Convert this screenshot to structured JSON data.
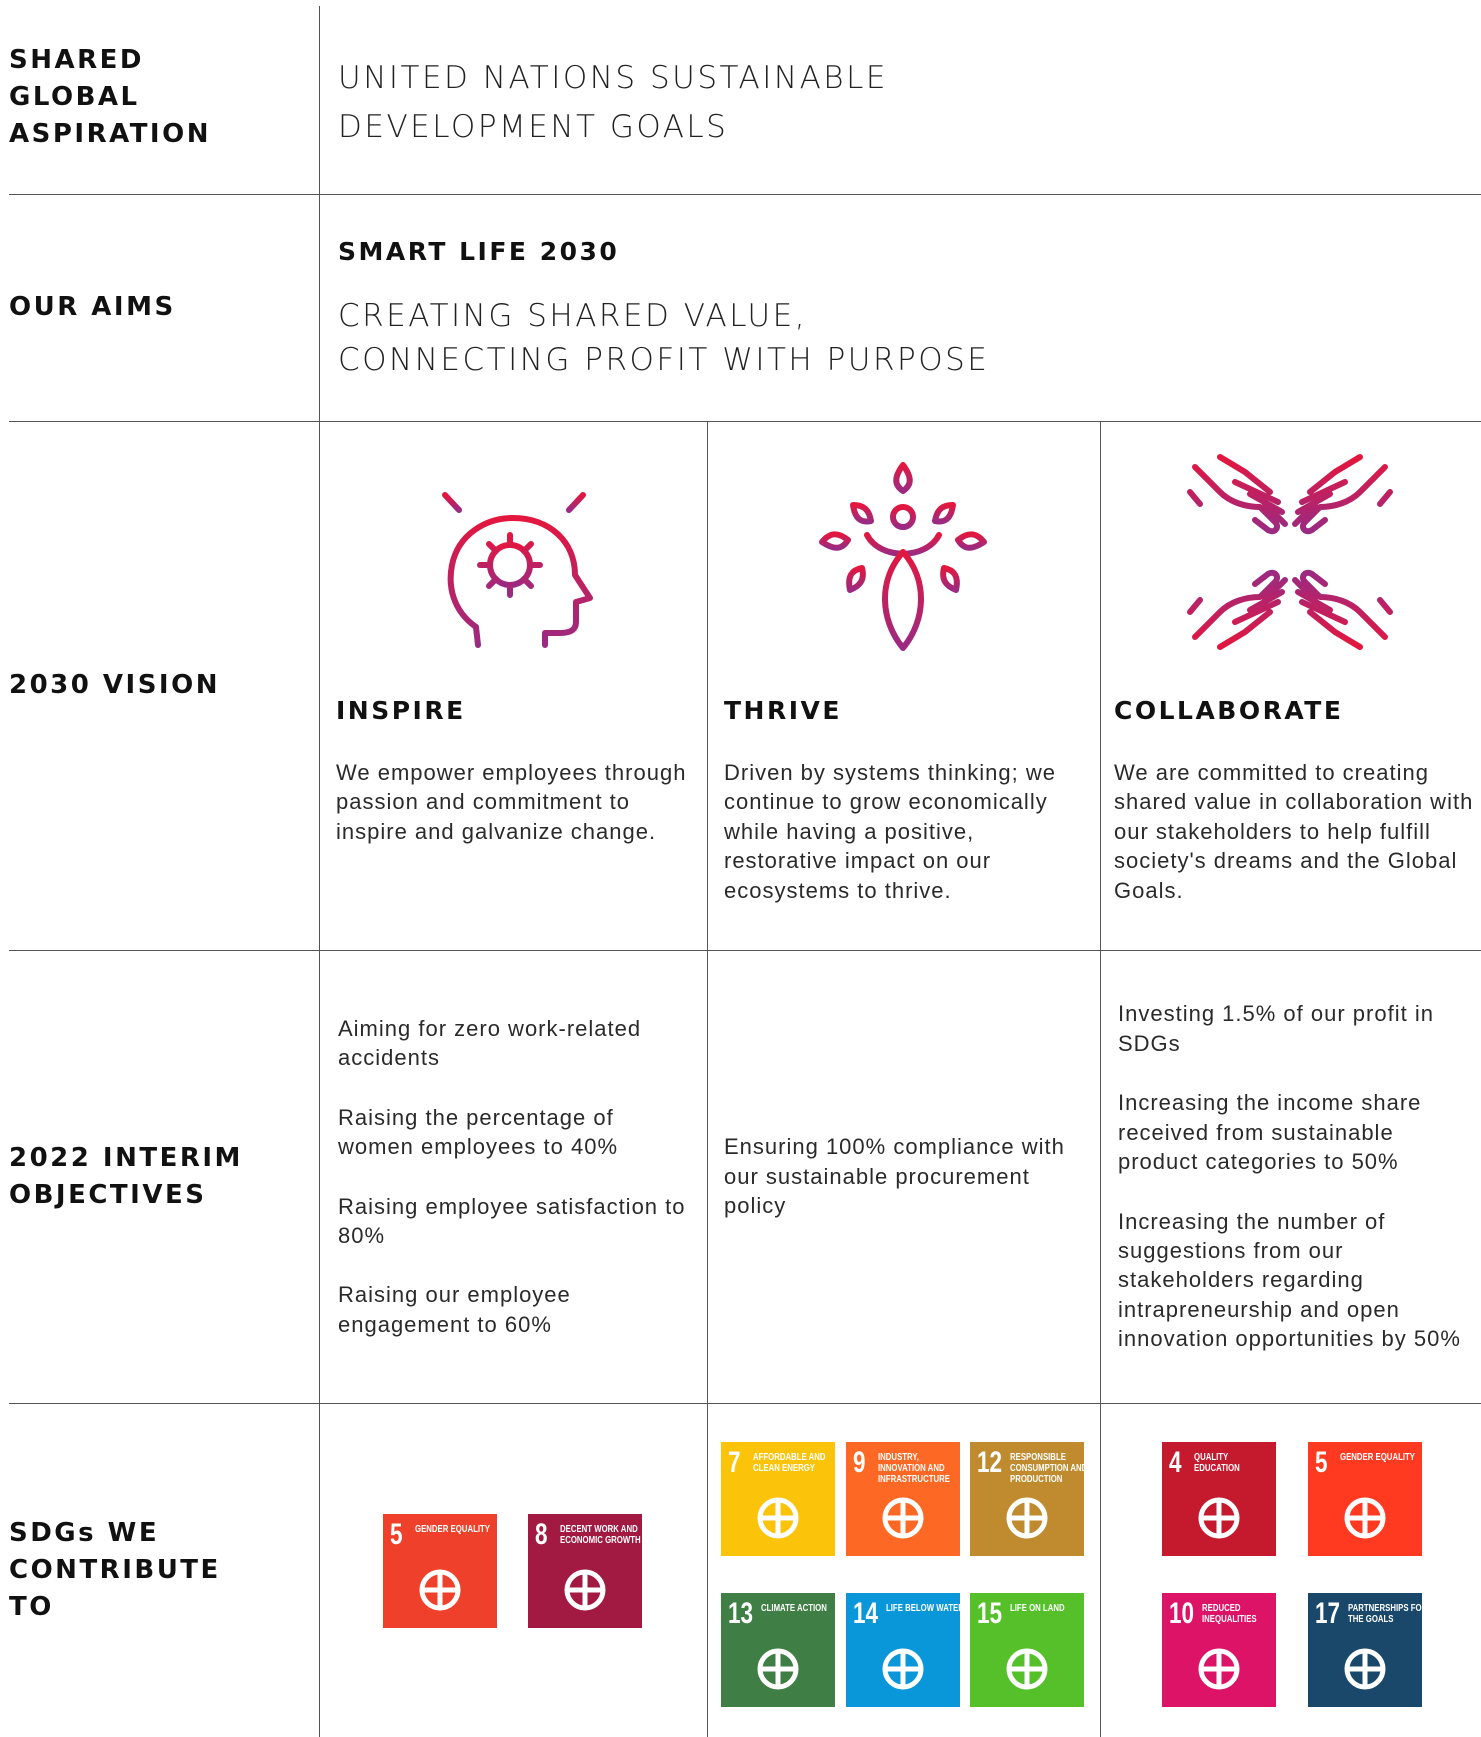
{
  "aspiration": {
    "label": [
      "SHARED",
      "GLOBAL",
      "ASPIRATION"
    ],
    "text": [
      "UNITED NATIONS SUSTAINABLE",
      "DEVELOPMENT GOALS"
    ]
  },
  "aims": {
    "label": [
      "OUR AIMS"
    ],
    "heading": "SMART LIFE 2030",
    "text": [
      "CREATING SHARED VALUE,",
      "CONNECTING PROFIT WITH PURPOSE"
    ]
  },
  "vision": {
    "label": [
      "2030 VISION"
    ],
    "columns": [
      {
        "title": "INSPIRE",
        "text": "We empower employees through passion and commitment to inspire and galvanize change."
      },
      {
        "title": "THRIVE",
        "text": "Driven by systems thinking; we continue to  grow economically while having a positive, restorative impact on our ecosystems to thrive."
      },
      {
        "title": "COLLABORATE",
        "text": "We are committed to creating shared value in collaboration with our stakeholders to help fulfill society's dreams and the Global Goals."
      }
    ]
  },
  "objectives": {
    "label": [
      "2022 INTERIM",
      "OBJECTIVES"
    ],
    "columns": [
      [
        "Aiming for zero work-related accidents",
        "Raising the percentage of women employees to 40%",
        "Raising employee satisfaction to 80%",
        "Raising our employee engagement to 60%"
      ],
      [
        "Ensuring 100% compliance with our sustainable procurement policy"
      ],
      [
        "Investing 1.5% of our profit in SDGs",
        "Increasing the income share received from sustainable product categories to 50%",
        "Increasing the number of suggestions from our stakeholders regarding intrapreneurship and open innovation opportunities by 50%"
      ]
    ]
  },
  "sdgs": {
    "label": [
      "SDGs WE",
      "CONTRIBUTE",
      "TO"
    ],
    "columns": [
      [
        {
          "number": "5",
          "title": "GENDER EQUALITY"
        },
        {
          "number": "8",
          "title": "DECENT WORK AND ECONOMIC GROWTH"
        }
      ],
      [
        {
          "number": "7",
          "title": "AFFORDABLE AND CLEAN ENERGY"
        },
        {
          "number": "9",
          "title": "INDUSTRY, INNOVATION AND INFRASTRUCTURE"
        },
        {
          "number": "12",
          "title": "RESPONSIBLE CONSUMPTION AND PRODUCTION"
        },
        {
          "number": "13",
          "title": "CLIMATE ACTION"
        },
        {
          "number": "14",
          "title": "LIFE BELOW WATER"
        },
        {
          "number": "15",
          "title": "LIFE ON LAND"
        }
      ],
      [
        {
          "number": "4",
          "title": "QUALITY EDUCATION"
        },
        {
          "number": "5",
          "title": "GENDER EQUALITY"
        },
        {
          "number": "10",
          "title": "REDUCED INEQUALITIES"
        },
        {
          "number": "17",
          "title": "PARTNERSHIPS FOR THE GOALS"
        }
      ]
    ]
  }
}
